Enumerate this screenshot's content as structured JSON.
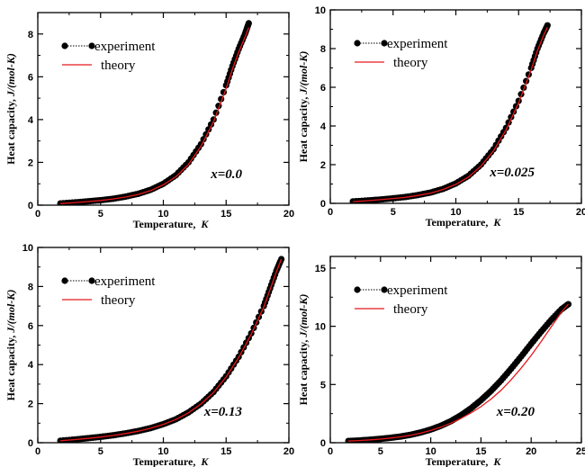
{
  "chart_data": [
    {
      "type": "line",
      "xlabel": "Temperature,",
      "xlabel_unit": "K",
      "ylabel": "Heat capacity,",
      "ylabel_unit": "J/(mol-K)",
      "xlim": [
        0,
        20
      ],
      "ylim": [
        0,
        9
      ],
      "xticks": [
        "0",
        "5",
        "10",
        "15",
        "20"
      ],
      "yticks": [
        "0",
        "2",
        "4",
        "6",
        "8"
      ],
      "annotation": "x=0.0",
      "legend": [
        "experiment",
        "theory"
      ],
      "legend_position": "top-left",
      "series": [
        {
          "name": "experiment",
          "style": "markers-dotted",
          "color": "#000000",
          "x": [
            1.8,
            3,
            4,
            5,
            6,
            7,
            8,
            9,
            10,
            11,
            12,
            13,
            14,
            15,
            15.5,
            16,
            16.5,
            16.8
          ],
          "y": [
            0.08,
            0.13,
            0.18,
            0.23,
            0.3,
            0.4,
            0.53,
            0.72,
            1.0,
            1.4,
            2.0,
            2.85,
            4.0,
            5.6,
            6.5,
            7.3,
            8.0,
            8.5
          ]
        },
        {
          "name": "theory",
          "style": "line",
          "color": "#e8191c",
          "x": [
            1.8,
            3,
            4,
            5,
            6,
            7,
            8,
            9,
            10,
            11,
            12,
            13,
            14,
            15,
            15.5,
            16,
            16.5,
            16.8
          ],
          "y": [
            0.07,
            0.12,
            0.17,
            0.22,
            0.29,
            0.38,
            0.5,
            0.68,
            0.95,
            1.33,
            1.9,
            2.75,
            3.9,
            5.45,
            6.35,
            7.15,
            7.85,
            8.3
          ]
        }
      ]
    },
    {
      "type": "line",
      "xlabel": "Temperature,",
      "xlabel_unit": "K",
      "ylabel": "Heat capacity,",
      "ylabel_unit": "J/(mol-K)",
      "xlim": [
        0,
        20
      ],
      "ylim": [
        0,
        10
      ],
      "xticks": [
        "0",
        "5",
        "10",
        "15",
        "20"
      ],
      "yticks": [
        "0",
        "2",
        "4",
        "6",
        "8",
        "10"
      ],
      "annotation": "x=0.025",
      "legend": [
        "experiment",
        "theory"
      ],
      "legend_position": "top-left",
      "series": [
        {
          "name": "experiment",
          "style": "markers-dotted",
          "color": "#000000",
          "x": [
            1.8,
            3,
            4,
            5,
            6,
            7,
            8,
            9,
            10,
            11,
            12,
            13,
            14,
            15,
            16,
            16.5,
            17,
            17.3
          ],
          "y": [
            0.1,
            0.15,
            0.2,
            0.26,
            0.33,
            0.43,
            0.56,
            0.75,
            1.03,
            1.42,
            2.0,
            2.8,
            3.9,
            5.3,
            7.0,
            8.0,
            8.8,
            9.2
          ]
        },
        {
          "name": "theory",
          "style": "line",
          "color": "#e8191c",
          "x": [
            1.8,
            3,
            4,
            5,
            6,
            7,
            8,
            9,
            10,
            11,
            12,
            13,
            14,
            15,
            16,
            16.5,
            17,
            17.3
          ],
          "y": [
            0.09,
            0.14,
            0.19,
            0.25,
            0.31,
            0.41,
            0.53,
            0.72,
            0.98,
            1.36,
            1.92,
            2.72,
            3.8,
            5.2,
            6.9,
            7.9,
            8.7,
            9.1
          ]
        }
      ]
    },
    {
      "type": "line",
      "xlabel": "Temperature,",
      "xlabel_unit": "K",
      "ylabel": "Heat capacity,",
      "ylabel_unit": "J/(mol-K)",
      "xlim": [
        0,
        20
      ],
      "ylim": [
        0,
        10
      ],
      "xticks": [
        "0",
        "5",
        "10",
        "15",
        "20"
      ],
      "yticks": [
        "0",
        "2",
        "4",
        "6",
        "8",
        "10"
      ],
      "annotation": "x=0.13",
      "legend": [
        "experiment",
        "theory"
      ],
      "legend_position": "top-left",
      "series": [
        {
          "name": "experiment",
          "style": "markers-dotted",
          "color": "#000000",
          "x": [
            1.8,
            3,
            4,
            5,
            6,
            7,
            8,
            9,
            10,
            11,
            12,
            13,
            14,
            15,
            16,
            17,
            18,
            18.5,
            19,
            19.4
          ],
          "y": [
            0.1,
            0.17,
            0.23,
            0.3,
            0.38,
            0.48,
            0.6,
            0.75,
            0.95,
            1.2,
            1.55,
            2.0,
            2.6,
            3.4,
            4.4,
            5.6,
            7.0,
            7.9,
            8.8,
            9.4
          ]
        },
        {
          "name": "theory",
          "style": "line",
          "color": "#e8191c",
          "x": [
            1.8,
            3,
            4,
            5,
            6,
            7,
            8,
            9,
            10,
            11,
            12,
            13,
            14,
            15,
            16,
            17,
            18,
            18.5,
            19,
            19.4
          ],
          "y": [
            0.1,
            0.16,
            0.22,
            0.29,
            0.37,
            0.47,
            0.59,
            0.74,
            0.94,
            1.19,
            1.53,
            1.98,
            2.57,
            3.37,
            4.36,
            5.55,
            6.95,
            7.85,
            8.75,
            9.4
          ]
        }
      ]
    },
    {
      "type": "line",
      "xlabel": "Temperature,",
      "xlabel_unit": "K",
      "ylabel": "Heat capacity,",
      "ylabel_unit": "J/(mol-K)",
      "xlim": [
        0,
        25
      ],
      "ylim": [
        0,
        16
      ],
      "xticks": [
        "0",
        "5",
        "10",
        "15",
        "20",
        "25"
      ],
      "yticks": [
        "0",
        "5",
        "10",
        "15"
      ],
      "annotation": "x=0.20",
      "legend": [
        "experiment",
        "theory"
      ],
      "legend_position": "top-left",
      "series": [
        {
          "name": "experiment",
          "style": "markers-dotted",
          "color": "#000000",
          "x": [
            1.8,
            3,
            4,
            5,
            6,
            7,
            8,
            9,
            10,
            11,
            12,
            13,
            14,
            15,
            16,
            17,
            18,
            19,
            20,
            21,
            22,
            23,
            23.7
          ],
          "y": [
            0.15,
            0.2,
            0.26,
            0.33,
            0.42,
            0.53,
            0.68,
            0.88,
            1.13,
            1.45,
            1.85,
            2.35,
            2.95,
            3.65,
            4.45,
            5.35,
            6.35,
            7.4,
            8.5,
            9.55,
            10.55,
            11.45,
            11.9
          ]
        },
        {
          "name": "theory",
          "style": "line",
          "color": "#e8191c",
          "x": [
            1.8,
            3,
            4,
            5,
            6,
            7,
            8,
            9,
            10,
            11,
            12,
            13,
            14,
            15,
            16,
            17,
            18,
            19,
            20,
            21,
            22,
            23,
            23.7
          ],
          "y": [
            0.14,
            0.19,
            0.25,
            0.31,
            0.4,
            0.5,
            0.64,
            0.82,
            1.05,
            1.33,
            1.68,
            2.08,
            2.55,
            3.1,
            3.75,
            4.5,
            5.4,
            6.4,
            7.5,
            8.7,
            9.95,
            11.2,
            11.9
          ]
        }
      ]
    }
  ]
}
